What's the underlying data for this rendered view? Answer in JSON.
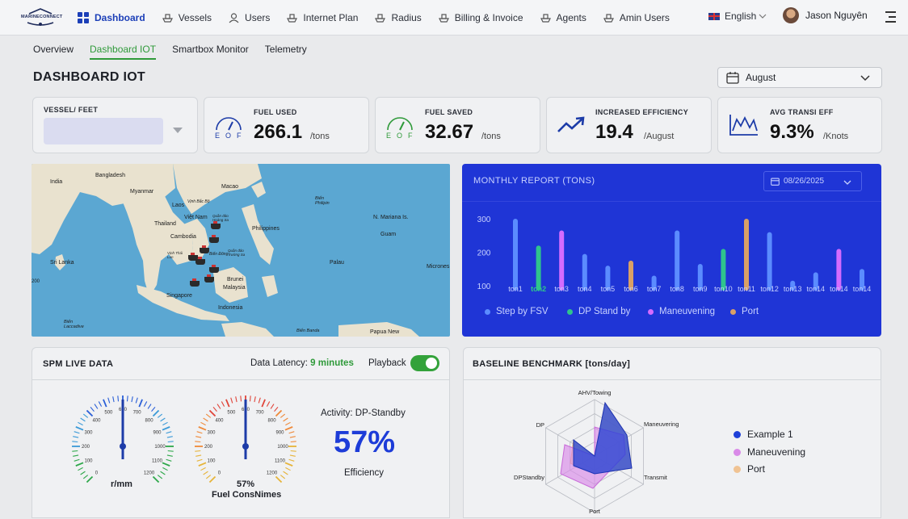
{
  "nav": {
    "logo_text": "MARINECONNECT",
    "items": [
      "Dashboard",
      "Vessels",
      "Users",
      "Internet Plan",
      "Radius",
      "Billing & Invoice",
      "Agents",
      "Amin Users"
    ],
    "language": "English",
    "user_name": "Jason Nguyên"
  },
  "tabs": [
    "Overview",
    "Dashboard IOT",
    "Smartbox Monitor",
    "Telemetry"
  ],
  "page_title": "DASHBOARD IOT",
  "month_select": "August",
  "kpis": {
    "vessel_label": "VESSEL/ FEET",
    "fuel_used": {
      "label": "FUEL USED",
      "value": "266.1",
      "unit": "/tons"
    },
    "fuel_saved": {
      "label": "FUEL SAVED",
      "value": "32.67",
      "unit": "/tons"
    },
    "efficiency": {
      "label": "INCREASED EFFICIENCY",
      "value": "19.4",
      "unit": "/August"
    },
    "avg_transit": {
      "label": "AVG TRANSI EFF",
      "value": "9.3%",
      "unit": "/Knots"
    }
  },
  "map": {
    "labels": [
      "India",
      "Bangladesh",
      "Myanmar",
      "Laos",
      "Việt Nam",
      "Thailand",
      "Cambodia",
      "Sri Lanka",
      "Malaysia",
      "Singapore",
      "Indonesia",
      "Brunei",
      "Philippines",
      "Macao",
      "N. Mariana Is.",
      "Guam",
      "Palau",
      "Micrones",
      "Papua New",
      "Biển Philipin",
      "Biển Banda",
      "Biển Laccadive",
      "Vịnh Bắc Bộ",
      "Quần đảo Hoàng Sa",
      "Quần đảo Trường Sa",
      "Biển Đông",
      "Vịnh Thái Lan",
      "200"
    ]
  },
  "report": {
    "title": "MONTHLY REPORT (TONS)",
    "date": "08/26/2025",
    "legend": [
      {
        "name": "Step by FSV",
        "color": "#5b8cff"
      },
      {
        "name": "DP Stand by",
        "color": "#2fc48d"
      },
      {
        "name": "Maneuvening",
        "color": "#d46bff"
      },
      {
        "name": "Port",
        "color": "#d9a066"
      }
    ]
  },
  "chart_data": {
    "type": "bar",
    "categories": [
      "ton1",
      "ton2",
      "ton3",
      "ton4",
      "ton5",
      "ton6",
      "ton7",
      "ton8",
      "ton9",
      "ton10",
      "ton11",
      "ton12",
      "ton13",
      "ton14",
      "ton14",
      "ton14"
    ],
    "values": [
      300,
      220,
      265,
      195,
      160,
      175,
      130,
      265,
      165,
      210,
      300,
      260,
      115,
      140,
      210,
      150
    ],
    "colors": [
      "#5b8cff",
      "#2fc48d",
      "#d46bff",
      "#5b8cff",
      "#5b8cff",
      "#d9a066",
      "#5b8cff",
      "#5b8cff",
      "#5b8cff",
      "#2fc48d",
      "#d9a066",
      "#5b8cff",
      "#5b8cff",
      "#5b8cff",
      "#d46bff",
      "#5b8cff"
    ],
    "highlight_category": "ton2",
    "yticks": [
      "300",
      "200",
      "100"
    ],
    "ylim": [
      100,
      300
    ]
  },
  "spm": {
    "title": "SPM LIVE DATA",
    "latency_label": "Data Latency:",
    "latency_value": "9 minutes",
    "playback_label": "Playback",
    "gauge1_ticks": [
      "0",
      "100",
      "200",
      "300",
      "400",
      "500",
      "600",
      "700",
      "800",
      "900",
      "1000",
      "1100",
      "1200"
    ],
    "gauge1_label": "r/mm",
    "gauge2_ticks": [
      "0",
      "100",
      "200",
      "300",
      "400",
      "500",
      "600",
      "700",
      "800",
      "900",
      "1000",
      "1100",
      "1200"
    ],
    "gauge2_percent": "57%",
    "gauge2_label": "Fuel ConsNimes",
    "activity": "Activity: DP-Standby",
    "efficiency_value": "57%",
    "efficiency_label": "Efficiency"
  },
  "benchmark": {
    "title": "BASELINE BENCHMARK [tons/day]",
    "axes": [
      "AHV/Towing",
      "Maneuvering",
      "Transmit",
      "Port",
      "DPStandby",
      "DP"
    ],
    "legend": [
      {
        "name": "Example 1",
        "color": "#1e40d8"
      },
      {
        "name": "Maneuvening",
        "color": "#d98ae8"
      },
      {
        "name": "Port",
        "color": "#f0c393"
      }
    ]
  }
}
